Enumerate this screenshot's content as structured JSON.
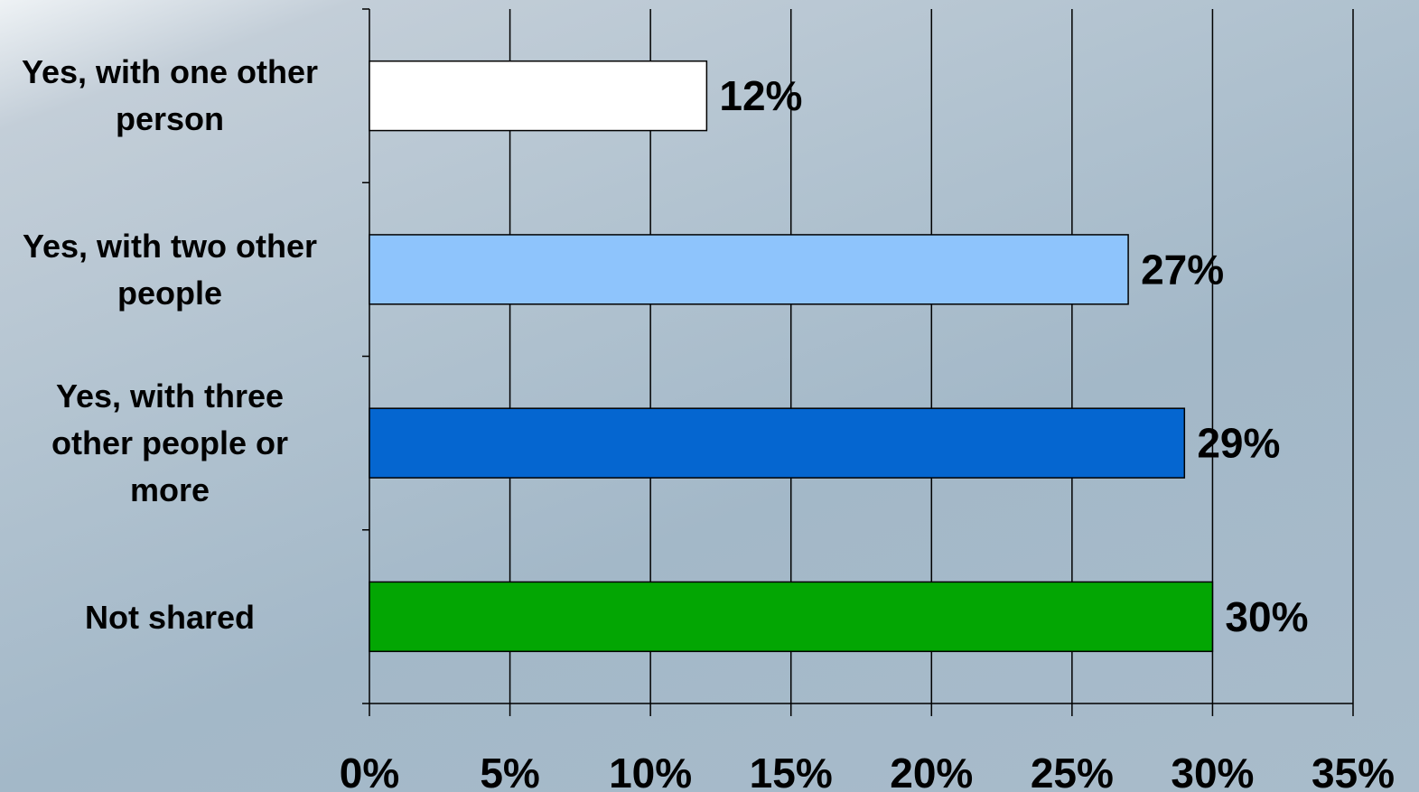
{
  "chart_data": {
    "type": "bar",
    "orientation": "horizontal",
    "categories": [
      "Yes, with one other\nperson",
      "Yes, with two other\npeople",
      "Yes, with three\nother people or\nmore",
      "Not shared"
    ],
    "values": [
      12,
      27,
      29,
      30
    ],
    "value_labels": [
      "12%",
      "27%",
      "29%",
      "30%"
    ],
    "colors": [
      "#ffffff",
      "#8ec4fc",
      "#0566d0",
      "#03a603"
    ],
    "xlim": [
      0,
      35
    ],
    "xticks": [
      0,
      5,
      10,
      15,
      20,
      25,
      30,
      35
    ],
    "xtick_labels": [
      "0%",
      "5%",
      "10%",
      "15%",
      "20%",
      "25%",
      "30%",
      "35%"
    ],
    "grid": true,
    "legend": "none"
  }
}
